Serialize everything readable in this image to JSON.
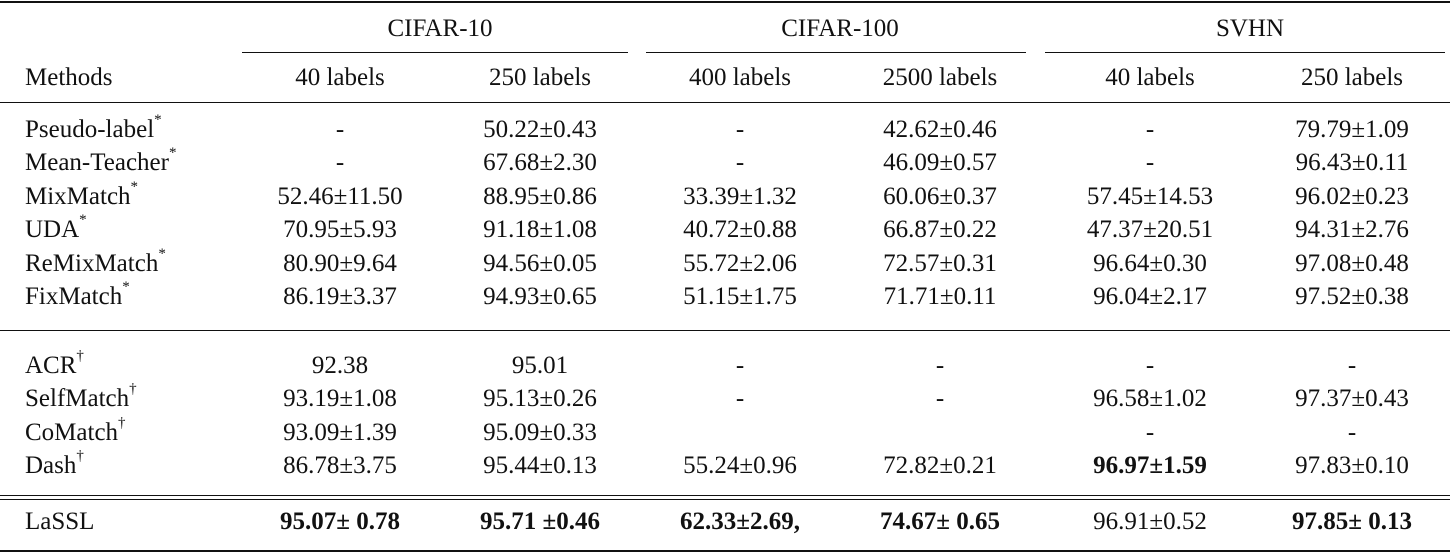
{
  "table": {
    "groups": [
      "CIFAR-10",
      "CIFAR-100",
      "SVHN"
    ],
    "methods_header": "Methods",
    "subheaders": [
      "40 labels",
      "250 labels",
      "400 labels",
      "2500 labels",
      "40 labels",
      "250 labels"
    ],
    "sections": [
      [
        {
          "method": "Pseudo-label",
          "mark": "*",
          "cells": [
            "-",
            "50.22±0.43",
            "-",
            "42.62±0.46",
            "-",
            "79.79±1.09"
          ],
          "bold": []
        },
        {
          "method": "Mean-Teacher",
          "mark": "*",
          "cells": [
            "-",
            "67.68±2.30",
            "-",
            "46.09±0.57",
            "-",
            "96.43±0.11"
          ],
          "bold": []
        },
        {
          "method": "MixMatch",
          "mark": "*",
          "cells": [
            "52.46±11.50",
            "88.95±0.86",
            "33.39±1.32",
            "60.06±0.37",
            "57.45±14.53",
            "96.02±0.23"
          ],
          "bold": []
        },
        {
          "method": "UDA",
          "mark": "*",
          "cells": [
            "70.95±5.93",
            "91.18±1.08",
            "40.72±0.88",
            "66.87±0.22",
            "47.37±20.51",
            "94.31±2.76"
          ],
          "bold": []
        },
        {
          "method": "ReMixMatch",
          "mark": "*",
          "cells": [
            "80.90±9.64",
            "94.56±0.05",
            "55.72±2.06",
            "72.57±0.31",
            "96.64±0.30",
            "97.08±0.48"
          ],
          "bold": []
        },
        {
          "method": "FixMatch",
          "mark": "*",
          "cells": [
            "86.19±3.37",
            "94.93±0.65",
            "51.15±1.75",
            "71.71±0.11",
            "96.04±2.17",
            "97.52±0.38"
          ],
          "bold": []
        }
      ],
      [
        {
          "method": "ACR",
          "mark": "†",
          "cells": [
            "92.38",
            "95.01",
            "-",
            "-",
            "-",
            "-"
          ],
          "bold": []
        },
        {
          "method": "SelfMatch",
          "mark": "†",
          "cells": [
            "93.19±1.08",
            "95.13±0.26",
            "-",
            "-",
            "96.58±1.02",
            "97.37±0.43"
          ],
          "bold": []
        },
        {
          "method": "CoMatch",
          "mark": "†",
          "cells": [
            "93.09±1.39",
            "95.09±0.33",
            "",
            "",
            "-",
            "-"
          ],
          "bold": []
        },
        {
          "method": "Dash",
          "mark": "†",
          "cells": [
            "86.78±3.75",
            "95.44±0.13",
            "55.24±0.96",
            "72.82±0.21",
            "96.97±1.59",
            "97.83±0.10"
          ],
          "bold": [
            4
          ]
        }
      ],
      [
        {
          "method": "LaSSL",
          "mark": "",
          "cells": [
            "95.07± 0.78",
            "95.71 ±0.46",
            "62.33±2.69,",
            "74.67± 0.65",
            "96.91±0.52",
            "97.85± 0.13"
          ],
          "bold": [
            0,
            1,
            2,
            3,
            5
          ]
        }
      ]
    ]
  }
}
